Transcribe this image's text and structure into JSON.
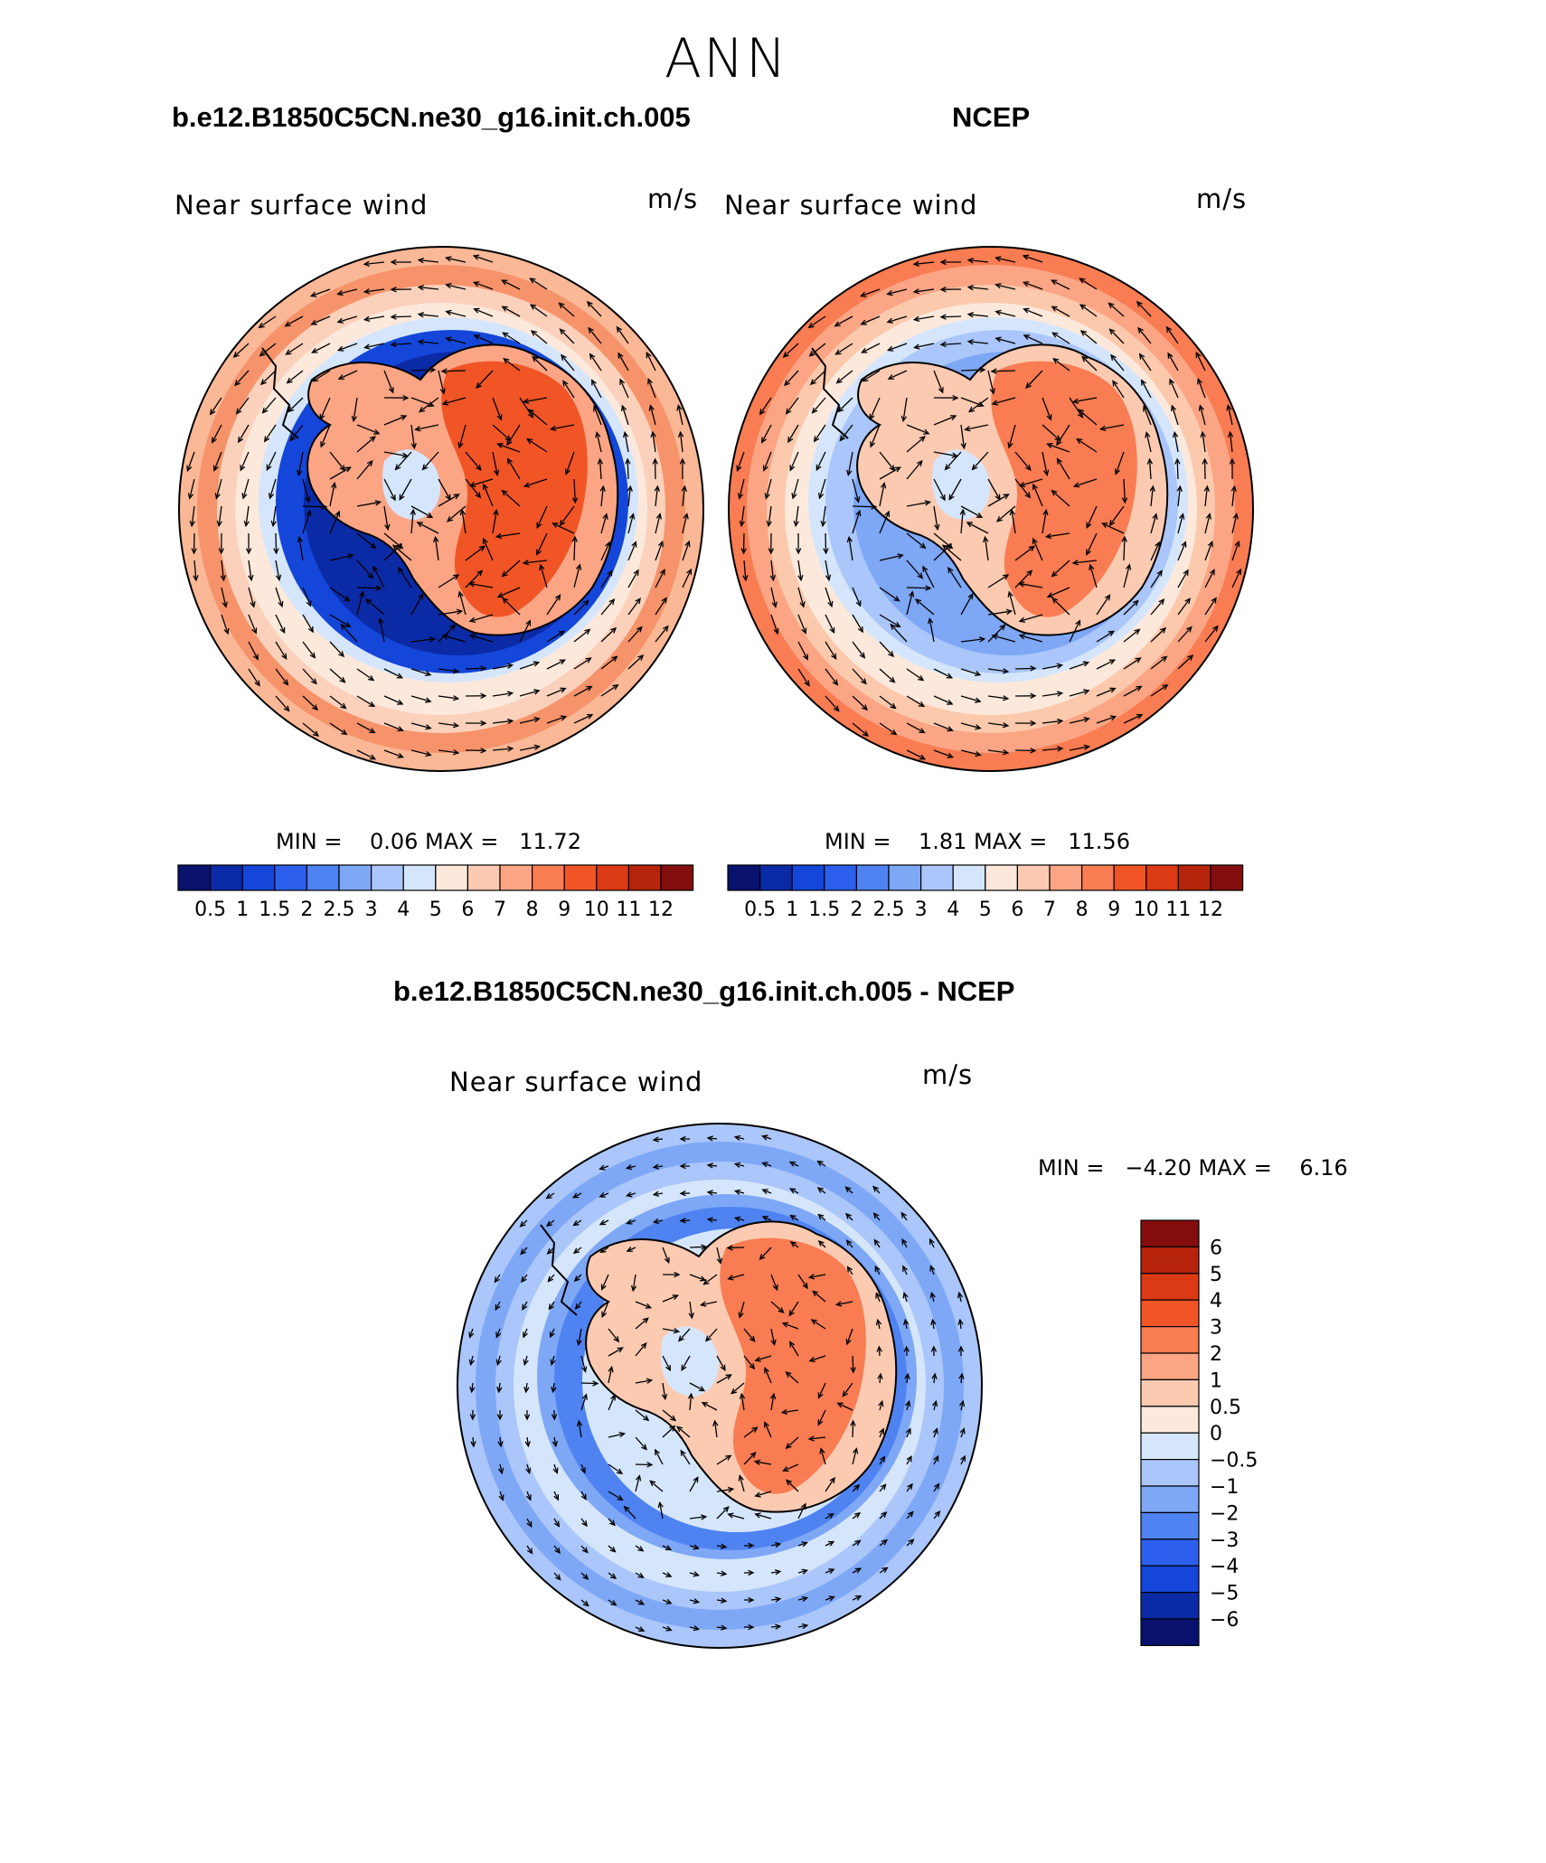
{
  "title": "ANN",
  "panels": [
    {
      "case_title": "b.e12.B1850C5CN.ne30_g16.init.ch.005",
      "field": "Near surface wind",
      "units": "m/s",
      "minmax": "MIN =    0.06 MAX =   11.72"
    },
    {
      "case_title": "NCEP",
      "field": "Near surface wind",
      "units": "m/s",
      "minmax": "MIN =    1.81 MAX =   11.56"
    },
    {
      "case_title": "b.e12.B1850C5CN.ne30_g16.init.ch.005 - NCEP",
      "field": "Near surface wind",
      "units": "m/s",
      "minmax": "MIN =   −4.20 MAX =    6.16"
    }
  ],
  "colorbar_abs": {
    "colors": [
      "#08126e",
      "#0b2aa6",
      "#1446d9",
      "#2c60ec",
      "#4f83f2",
      "#7ea7f6",
      "#aac6fa",
      "#d5e6fc",
      "#fde9dc",
      "#fccab1",
      "#fba585",
      "#f97c52",
      "#f15526",
      "#dc3a14",
      "#b5240b",
      "#840d0d"
    ],
    "labels": [
      "0.5",
      "1",
      "1.5",
      "2",
      "2.5",
      "3",
      "4",
      "5",
      "6",
      "7",
      "8",
      "9",
      "10",
      "11",
      "12"
    ]
  },
  "colorbar_diff": {
    "colors": [
      "#840d0d",
      "#b5240b",
      "#dc3a14",
      "#f15526",
      "#f97c52",
      "#fba585",
      "#fccab1",
      "#fde9dc",
      "#d5e6fc",
      "#aac6fa",
      "#7ea7f6",
      "#4f83f2",
      "#2c60ec",
      "#1446d9",
      "#0b2aa6",
      "#08126e"
    ],
    "labels": [
      "6",
      "5",
      "4",
      "3",
      "2",
      "1",
      "0.5",
      "0",
      "−0.5",
      "−1",
      "−2",
      "−3",
      "−4",
      "−5",
      "−6"
    ]
  }
}
